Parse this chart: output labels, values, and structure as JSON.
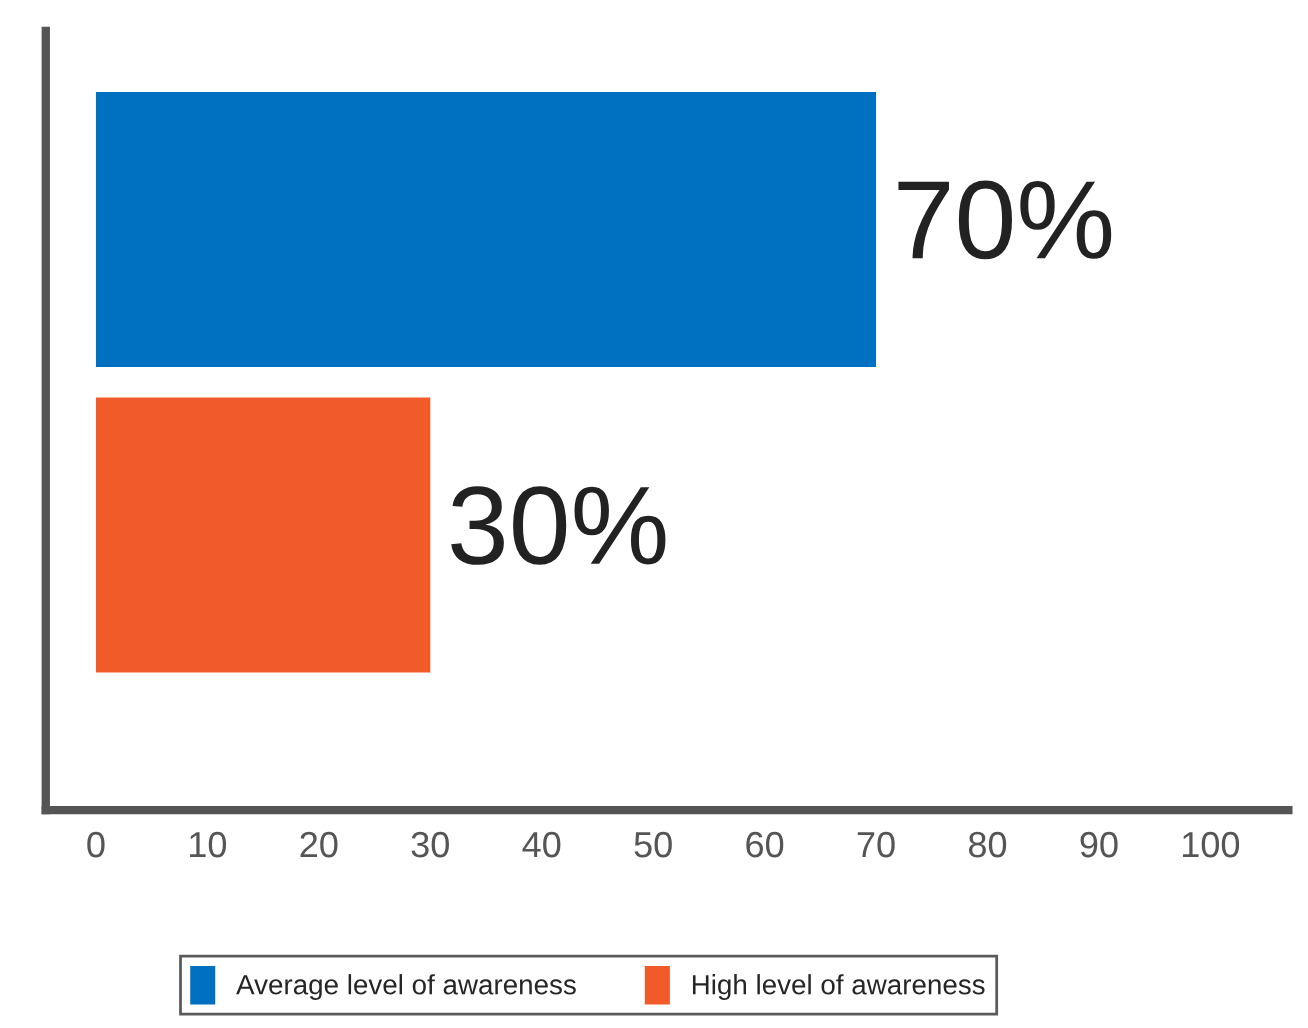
{
  "chart_data": {
    "type": "bar",
    "orientation": "horizontal",
    "categories": [
      null,
      null
    ],
    "series": [
      {
        "name": "Average level of awareness",
        "color": "#0070c0",
        "values": [
          70,
          null
        ],
        "value_labels": [
          "70%",
          null
        ]
      },
      {
        "name": "High level of awareness",
        "color": "#f15a29",
        "values": [
          null,
          30
        ],
        "value_labels": [
          null,
          "30%"
        ]
      }
    ],
    "xlim": [
      -4.5,
      107
    ],
    "xticks": [
      0,
      10,
      20,
      30,
      40,
      50,
      60,
      70,
      80,
      90,
      100
    ],
    "grid": false,
    "legend": "bottom"
  }
}
